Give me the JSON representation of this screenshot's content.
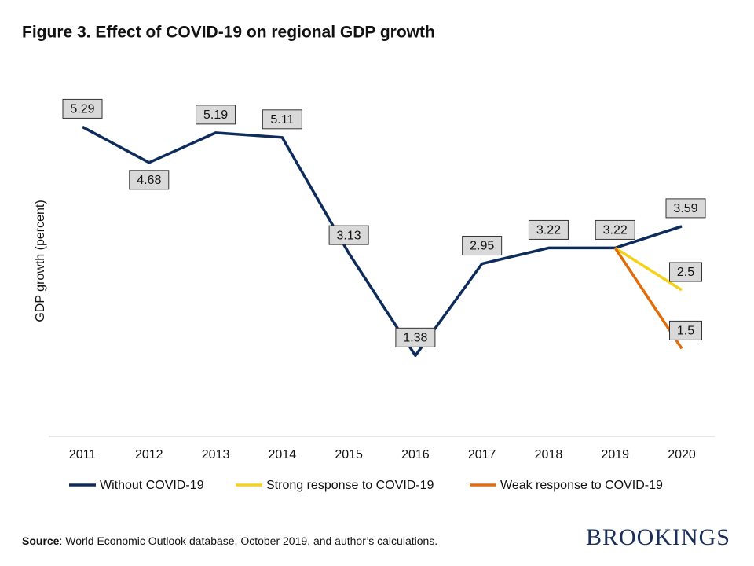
{
  "chart_data": {
    "type": "line",
    "title": "Figure 3. Effect of COVID-19 on regional GDP growth",
    "y_label": "GDP growth (percent)",
    "categories": [
      "2011",
      "2012",
      "2013",
      "2014",
      "2015",
      "2016",
      "2017",
      "2018",
      "2019",
      "2020"
    ],
    "series": [
      {
        "name": "Without COVID-19",
        "color": "#0d2c5c",
        "values": [
          5.29,
          4.68,
          5.19,
          5.11,
          3.13,
          1.38,
          2.95,
          3.22,
          3.22,
          3.59
        ]
      },
      {
        "name": "Strong response to COVID-19",
        "color": "#f7d117",
        "values": [
          null,
          null,
          null,
          null,
          null,
          null,
          null,
          null,
          3.22,
          2.5
        ]
      },
      {
        "name": "Weak response to COVID-19",
        "color": "#e36c0a",
        "values": [
          null,
          null,
          null,
          null,
          null,
          null,
          null,
          null,
          3.22,
          1.5
        ]
      }
    ],
    "ylim": [
      0,
      6
    ],
    "source_label": "Source",
    "source_text": ": World Economic Outlook database, October 2019, and author’s calculations.",
    "logo": "BROOKINGS"
  }
}
